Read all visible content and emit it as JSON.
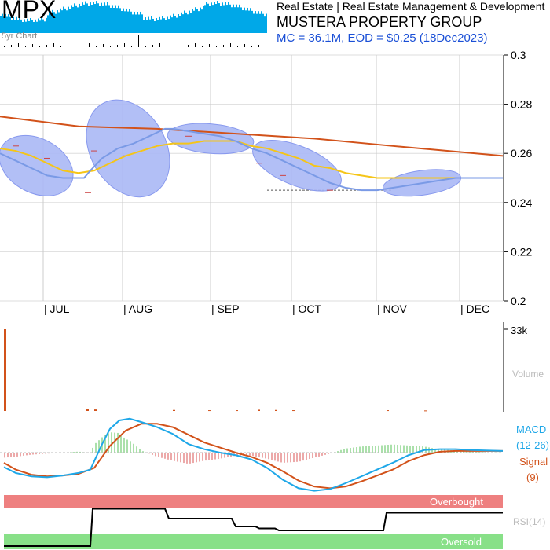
{
  "header": {
    "ticker": "MPX",
    "five_year_label": "5yr Chart",
    "sector": "Real Estate | Real Estate Management & Development",
    "company": "MUSTERA PROPERTY GROUP",
    "market_info": "MC = 36.1M, EOD = $0.25 (18Dec2023)"
  },
  "colors": {
    "spark": "#00a8e8",
    "band": "#aab8f5",
    "band_edge": "#8899ee",
    "price_line": "#7a9ae6",
    "sma_short": "#f5c518",
    "sma_long": "#d2521a",
    "macd": "#1ea7e8",
    "signal": "#d2521a",
    "hist_pos": "#8fd68f",
    "hist_neg": "#e58c8c",
    "overbought": "#ee8080",
    "oversold": "#88e088",
    "volume": "#d2521a"
  },
  "chart_data": [
    {
      "type": "line",
      "name": "price",
      "months": [
        "JUL",
        "AUG",
        "SEP",
        "OCT",
        "NOV",
        "DEC"
      ],
      "y_ticks": [
        "0.3",
        "0.28",
        "0.26",
        "0.24",
        "0.22",
        "0.2"
      ],
      "ylim": [
        0.2,
        0.3
      ],
      "grid": true,
      "price": [
        [
          0,
          0.26
        ],
        [
          20,
          0.257
        ],
        [
          40,
          0.254
        ],
        [
          60,
          0.251
        ],
        [
          80,
          0.25
        ],
        [
          100,
          0.25
        ],
        [
          107,
          0.25
        ],
        [
          115,
          0.253
        ],
        [
          130,
          0.258
        ],
        [
          150,
          0.262
        ],
        [
          170,
          0.264
        ],
        [
          190,
          0.267
        ],
        [
          210,
          0.27
        ],
        [
          220,
          0.27
        ],
        [
          240,
          0.269
        ],
        [
          260,
          0.268
        ],
        [
          280,
          0.267
        ],
        [
          300,
          0.265
        ],
        [
          320,
          0.262
        ],
        [
          340,
          0.26
        ],
        [
          360,
          0.257
        ],
        [
          380,
          0.254
        ],
        [
          400,
          0.251
        ],
        [
          420,
          0.248
        ],
        [
          440,
          0.246
        ],
        [
          460,
          0.245
        ],
        [
          480,
          0.245
        ],
        [
          500,
          0.246
        ],
        [
          520,
          0.247
        ],
        [
          540,
          0.248
        ],
        [
          560,
          0.249
        ],
        [
          580,
          0.25
        ],
        [
          600,
          0.25
        ],
        [
          640,
          0.25
        ]
      ],
      "sma_short": [
        [
          0,
          0.262
        ],
        [
          20,
          0.261
        ],
        [
          40,
          0.259
        ],
        [
          60,
          0.256
        ],
        [
          80,
          0.253
        ],
        [
          100,
          0.252
        ],
        [
          120,
          0.253
        ],
        [
          140,
          0.256
        ],
        [
          160,
          0.259
        ],
        [
          180,
          0.261
        ],
        [
          200,
          0.263
        ],
        [
          220,
          0.264
        ],
        [
          240,
          0.264
        ],
        [
          260,
          0.265
        ],
        [
          280,
          0.265
        ],
        [
          300,
          0.265
        ],
        [
          320,
          0.263
        ],
        [
          340,
          0.262
        ],
        [
          360,
          0.26
        ],
        [
          380,
          0.258
        ],
        [
          400,
          0.255
        ],
        [
          420,
          0.254
        ],
        [
          440,
          0.252
        ],
        [
          460,
          0.251
        ],
        [
          480,
          0.25
        ],
        [
          500,
          0.25
        ],
        [
          520,
          0.25
        ],
        [
          540,
          0.25
        ],
        [
          560,
          0.25
        ],
        [
          580,
          0.25
        ],
        [
          600,
          0.25
        ],
        [
          640,
          0.25
        ]
      ],
      "sma_long": [
        [
          0,
          0.275
        ],
        [
          100,
          0.271
        ],
        [
          200,
          0.27
        ],
        [
          300,
          0.268
        ],
        [
          400,
          0.266
        ],
        [
          500,
          0.263
        ],
        [
          640,
          0.259
        ]
      ],
      "bands": [
        {
          "cx": 46,
          "cy": 0.255,
          "rx": 50,
          "ry": 0.011,
          "rot": 28
        },
        {
          "cx": 163,
          "cy": 0.262,
          "rx": 48,
          "ry": 0.021,
          "rot": -30
        },
        {
          "cx": 268,
          "cy": 0.266,
          "rx": 55,
          "ry": 0.006,
          "rot": 5
        },
        {
          "cx": 378,
          "cy": 0.255,
          "rx": 60,
          "ry": 0.008,
          "rot": 22
        },
        {
          "cx": 537,
          "cy": 0.248,
          "rx": 50,
          "ry": 0.005,
          "rot": -8
        }
      ],
      "ticks": [
        [
          20,
          0.263
        ],
        [
          60,
          0.258
        ],
        [
          112,
          0.244
        ],
        [
          120,
          0.261
        ],
        [
          160,
          0.259
        ],
        [
          240,
          0.267
        ],
        [
          330,
          0.256
        ],
        [
          360,
          0.251
        ],
        [
          420,
          0.245
        ],
        [
          470,
          0.245
        ],
        [
          580,
          0.25
        ]
      ]
    },
    {
      "type": "bar",
      "name": "volume",
      "max_label": "33k",
      "axis_label": "Volume",
      "values": [
        [
          5,
          33
        ],
        [
          110,
          0.8
        ],
        [
          120,
          0.6
        ],
        [
          220,
          0.4
        ],
        [
          265,
          0.3
        ],
        [
          300,
          0.3
        ],
        [
          328,
          0.5
        ],
        [
          350,
          0.4
        ],
        [
          372,
          0.3
        ],
        [
          492,
          0.3
        ],
        [
          540,
          0.2
        ]
      ]
    },
    {
      "type": "line",
      "name": "macd",
      "label": "MACD",
      "params": "(12-26)",
      "signal_label": "Signal",
      "signal_params": "(9)",
      "macd": [
        [
          5,
          -0.017
        ],
        [
          20,
          -0.024
        ],
        [
          40,
          -0.028
        ],
        [
          60,
          -0.029
        ],
        [
          80,
          -0.027
        ],
        [
          100,
          -0.024
        ],
        [
          115,
          -0.02
        ],
        [
          120,
          -0.01
        ],
        [
          130,
          0.01
        ],
        [
          140,
          0.028
        ],
        [
          152,
          0.038
        ],
        [
          165,
          0.04
        ],
        [
          180,
          0.036
        ],
        [
          200,
          0.03
        ],
        [
          220,
          0.022
        ],
        [
          240,
          0.01
        ],
        [
          260,
          0.004
        ],
        [
          280,
          0.0
        ],
        [
          300,
          -0.003
        ],
        [
          320,
          -0.008
        ],
        [
          340,
          -0.018
        ],
        [
          360,
          -0.032
        ],
        [
          380,
          -0.042
        ],
        [
          400,
          -0.045
        ],
        [
          420,
          -0.043
        ],
        [
          440,
          -0.036
        ],
        [
          460,
          -0.028
        ],
        [
          480,
          -0.02
        ],
        [
          500,
          -0.012
        ],
        [
          520,
          -0.003
        ],
        [
          540,
          0.003
        ],
        [
          560,
          0.004
        ],
        [
          580,
          0.004
        ],
        [
          600,
          0.003
        ],
        [
          640,
          0.002
        ]
      ],
      "signal": [
        [
          5,
          -0.012
        ],
        [
          20,
          -0.02
        ],
        [
          40,
          -0.026
        ],
        [
          60,
          -0.028
        ],
        [
          80,
          -0.027
        ],
        [
          100,
          -0.025
        ],
        [
          120,
          -0.018
        ],
        [
          140,
          0.008
        ],
        [
          160,
          0.026
        ],
        [
          180,
          0.034
        ],
        [
          200,
          0.034
        ],
        [
          220,
          0.03
        ],
        [
          240,
          0.021
        ],
        [
          260,
          0.012
        ],
        [
          280,
          0.006
        ],
        [
          300,
          0.0
        ],
        [
          320,
          -0.005
        ],
        [
          340,
          -0.012
        ],
        [
          360,
          -0.022
        ],
        [
          380,
          -0.033
        ],
        [
          400,
          -0.04
        ],
        [
          420,
          -0.042
        ],
        [
          440,
          -0.04
        ],
        [
          460,
          -0.034
        ],
        [
          480,
          -0.027
        ],
        [
          500,
          -0.02
        ],
        [
          520,
          -0.01
        ],
        [
          540,
          -0.003
        ],
        [
          560,
          0.001
        ],
        [
          580,
          0.002
        ],
        [
          600,
          0.002
        ],
        [
          640,
          0.002
        ]
      ],
      "ylim": [
        -0.05,
        0.05
      ]
    },
    {
      "type": "line",
      "name": "rsi",
      "label": "RSI(14)",
      "overbought_label": "Overbought",
      "oversold_label": "Oversold",
      "ylim": [
        0,
        100
      ],
      "values": [
        [
          5,
          0
        ],
        [
          115,
          0
        ],
        [
          118,
          95
        ],
        [
          210,
          95
        ],
        [
          215,
          70
        ],
        [
          295,
          70
        ],
        [
          300,
          50
        ],
        [
          325,
          50
        ],
        [
          330,
          45
        ],
        [
          350,
          45
        ],
        [
          355,
          40
        ],
        [
          488,
          40
        ],
        [
          492,
          85
        ],
        [
          640,
          85
        ]
      ]
    }
  ]
}
